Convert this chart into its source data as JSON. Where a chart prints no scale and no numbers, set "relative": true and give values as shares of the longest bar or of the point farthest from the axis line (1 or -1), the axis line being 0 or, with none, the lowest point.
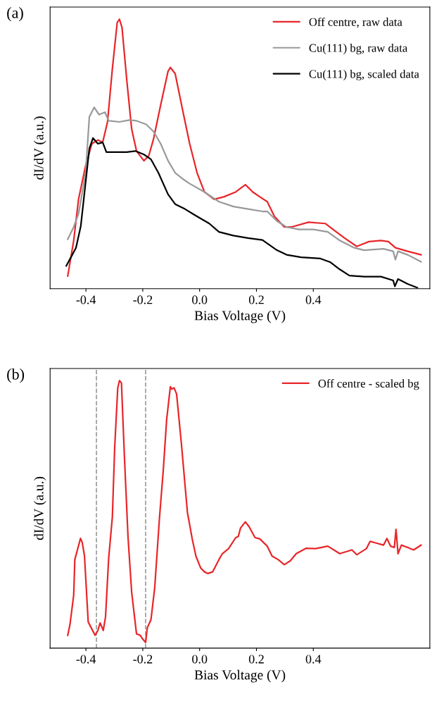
{
  "chart_data": [
    {
      "type": "line",
      "relative": true,
      "xlabel": "Bias Voltage (V)",
      "ylabel": "dI/dV (a.u.)",
      "annotations": [
        "(a)"
      ],
      "xlim": [
        -0.526,
        0.81
      ],
      "xticks": [
        {
          "value": -0.4,
          "label": "-0.4"
        },
        {
          "value": -0.2,
          "label": "-0.2"
        },
        {
          "value": 0.0,
          "label": "0.0"
        },
        {
          "value": 0.2,
          "label": "0.2"
        },
        {
          "value": 0.4,
          "label": "0.4"
        }
      ],
      "tick_labels": "x",
      "legend": "top right",
      "grid": false,
      "line_style": "solid",
      "marker": "none",
      "series": [
        {
          "name": "Off centre, raw data",
          "color": "#e8262a",
          "x": [
            -0.464,
            -0.443,
            -0.426,
            -0.401,
            -0.379,
            -0.358,
            -0.341,
            -0.324,
            -0.307,
            -0.29,
            -0.282,
            -0.273,
            -0.256,
            -0.239,
            -0.222,
            -0.196,
            -0.179,
            -0.162,
            -0.137,
            -0.111,
            -0.103,
            -0.086,
            -0.06,
            -0.035,
            -0.009,
            0.017,
            0.051,
            0.085,
            0.127,
            0.161,
            0.187,
            0.212,
            0.238,
            0.263,
            0.298,
            0.323,
            0.383,
            0.442,
            0.476,
            0.51,
            0.553,
            0.596,
            0.638,
            0.664,
            0.689,
            0.732,
            0.779
          ],
          "values": [
            0.047,
            0.179,
            0.332,
            0.457,
            0.538,
            0.552,
            0.543,
            0.619,
            0.816,
            0.987,
            1.0,
            0.969,
            0.771,
            0.592,
            0.511,
            0.475,
            0.493,
            0.556,
            0.682,
            0.807,
            0.821,
            0.798,
            0.664,
            0.538,
            0.43,
            0.359,
            0.332,
            0.341,
            0.359,
            0.386,
            0.359,
            0.341,
            0.323,
            0.269,
            0.229,
            0.229,
            0.247,
            0.242,
            0.215,
            0.188,
            0.157,
            0.175,
            0.179,
            0.175,
            0.152,
            0.139,
            0.126
          ]
        },
        {
          "name": "Cu(111) bg, raw data",
          "color": "#999999",
          "x": [
            -0.464,
            -0.443,
            -0.426,
            -0.401,
            -0.388,
            -0.371,
            -0.354,
            -0.333,
            -0.32,
            -0.282,
            -0.247,
            -0.222,
            -0.188,
            -0.162,
            -0.137,
            -0.111,
            -0.086,
            -0.06,
            -0.035,
            0.017,
            0.068,
            0.119,
            0.17,
            0.221,
            0.238,
            0.272,
            0.306,
            0.349,
            0.4,
            0.451,
            0.493,
            0.544,
            0.579,
            0.647,
            0.681,
            0.689,
            0.698,
            0.732,
            0.779
          ],
          "values": [
            0.184,
            0.229,
            0.278,
            0.43,
            0.637,
            0.673,
            0.646,
            0.655,
            0.623,
            0.619,
            0.626,
            0.623,
            0.61,
            0.583,
            0.538,
            0.475,
            0.43,
            0.408,
            0.39,
            0.359,
            0.323,
            0.305,
            0.296,
            0.287,
            0.287,
            0.251,
            0.229,
            0.22,
            0.22,
            0.211,
            0.179,
            0.152,
            0.143,
            0.148,
            0.139,
            0.108,
            0.139,
            0.126,
            0.1
          ]
        },
        {
          "name": "Cu(111) bg, scaled data",
          "color": "#000000",
          "x": [
            -0.469,
            -0.448,
            -0.435,
            -0.418,
            -0.401,
            -0.388,
            -0.375,
            -0.358,
            -0.341,
            -0.328,
            -0.299,
            -0.256,
            -0.226,
            -0.196,
            -0.171,
            -0.145,
            -0.111,
            -0.086,
            -0.052,
            -0.018,
            0.034,
            0.068,
            0.119,
            0.17,
            0.221,
            0.272,
            0.306,
            0.357,
            0.425,
            0.459,
            0.493,
            0.527,
            0.579,
            0.638,
            0.681,
            0.687,
            0.698,
            0.732,
            0.766
          ],
          "values": [
            0.085,
            0.126,
            0.152,
            0.233,
            0.395,
            0.52,
            0.559,
            0.538,
            0.543,
            0.507,
            0.507,
            0.507,
            0.511,
            0.498,
            0.48,
            0.43,
            0.35,
            0.314,
            0.296,
            0.274,
            0.242,
            0.211,
            0.197,
            0.188,
            0.181,
            0.143,
            0.126,
            0.117,
            0.112,
            0.099,
            0.072,
            0.049,
            0.045,
            0.045,
            0.031,
            0.009,
            0.036,
            0.018,
            0.004
          ]
        }
      ]
    },
    {
      "type": "line",
      "relative": true,
      "xlabel": "Bias Voltage (V)",
      "ylabel": "dI/dV (a.u.)",
      "annotations": [
        "(b)"
      ],
      "xlim": [
        -0.526,
        0.81
      ],
      "xticks": [
        {
          "value": -0.4,
          "label": "-0.4"
        },
        {
          "value": -0.2,
          "label": "-0.2"
        },
        {
          "value": 0.0,
          "label": "0.0"
        },
        {
          "value": 0.2,
          "label": "0.2"
        },
        {
          "value": 0.4,
          "label": "0.4"
        }
      ],
      "tick_labels": "x",
      "legend": "top right",
      "grid": false,
      "line_style": "solid",
      "marker": "none",
      "ref_lines": [
        {
          "axis": "x",
          "value": -0.363,
          "color": "#999999",
          "line_style": "dashed"
        },
        {
          "axis": "x",
          "value": -0.19,
          "color": "#999999",
          "line_style": "dashed"
        }
      ],
      "series": [
        {
          "name": "Off centre - scaled bg",
          "color": "#e8262a",
          "x": [
            -0.464,
            -0.456,
            -0.443,
            -0.439,
            -0.43,
            -0.419,
            -0.413,
            -0.405,
            -0.392,
            -0.379,
            -0.368,
            -0.358,
            -0.35,
            -0.339,
            -0.331,
            -0.32,
            -0.307,
            -0.299,
            -0.288,
            -0.282,
            -0.275,
            -0.265,
            -0.252,
            -0.239,
            -0.222,
            -0.209,
            -0.201,
            -0.19,
            -0.184,
            -0.171,
            -0.158,
            -0.141,
            -0.128,
            -0.116,
            -0.103,
            -0.098,
            -0.09,
            -0.081,
            -0.064,
            -0.043,
            -0.026,
            -0.013,
            0.004,
            0.017,
            0.029,
            0.046,
            0.068,
            0.08,
            0.102,
            0.127,
            0.136,
            0.144,
            0.161,
            0.174,
            0.195,
            0.212,
            0.238,
            0.255,
            0.276,
            0.298,
            0.319,
            0.34,
            0.374,
            0.408,
            0.451,
            0.493,
            0.536,
            0.553,
            0.587,
            0.6,
            0.617,
            0.647,
            0.659,
            0.672,
            0.685,
            0.691,
            0.698,
            0.71,
            0.732,
            0.753,
            0.779
          ],
          "values": [
            0.048,
            0.089,
            0.199,
            0.331,
            0.367,
            0.41,
            0.395,
            0.344,
            0.098,
            0.071,
            0.048,
            0.066,
            0.094,
            0.066,
            0.117,
            0.335,
            0.49,
            0.745,
            0.973,
            1.0,
            0.991,
            0.727,
            0.417,
            0.208,
            0.053,
            0.048,
            0.035,
            0.021,
            0.076,
            0.107,
            0.226,
            0.49,
            0.663,
            0.854,
            0.977,
            0.968,
            0.973,
            0.95,
            0.763,
            0.508,
            0.408,
            0.344,
            0.299,
            0.285,
            0.279,
            0.285,
            0.331,
            0.353,
            0.372,
            0.413,
            0.417,
            0.449,
            0.472,
            0.454,
            0.413,
            0.408,
            0.381,
            0.344,
            0.331,
            0.312,
            0.326,
            0.353,
            0.373,
            0.372,
            0.381,
            0.353,
            0.367,
            0.349,
            0.372,
            0.399,
            0.394,
            0.385,
            0.41,
            0.381,
            0.376,
            0.444,
            0.353,
            0.385,
            0.376,
            0.367,
            0.385
          ]
        }
      ]
    }
  ]
}
